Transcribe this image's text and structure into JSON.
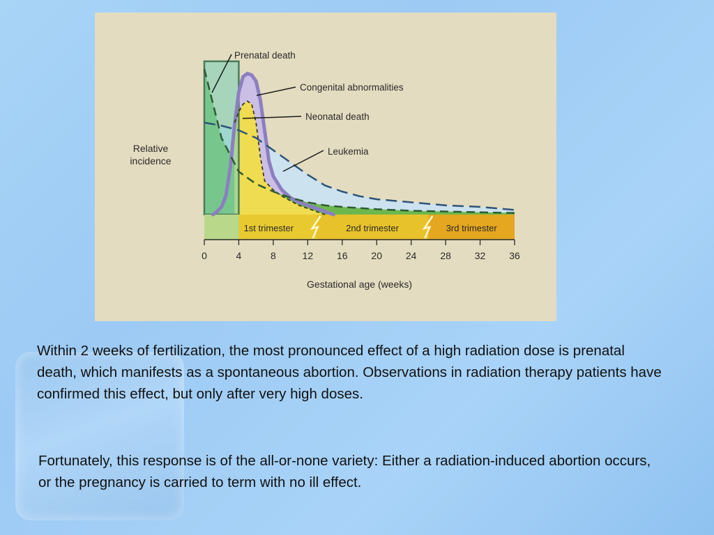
{
  "chart_data": {
    "type": "area",
    "xlabel": "Gestational age (weeks)",
    "ylabel_lines": [
      "Relative",
      "incidence"
    ],
    "x_ticks": [
      0,
      4,
      8,
      12,
      16,
      20,
      24,
      28,
      32,
      36
    ],
    "xlim": [
      0,
      36
    ],
    "ylim": [
      0,
      1
    ],
    "grid": false,
    "periods": [
      {
        "label": "1st trimester",
        "start": 0,
        "end": 13
      },
      {
        "label": "2nd trimester",
        "start": 13,
        "end": 26
      },
      {
        "label": "3rd trimester",
        "start": 26,
        "end": 36
      }
    ],
    "series": [
      {
        "name": "Prenatal death",
        "style": "box",
        "color": "#7fd0b8",
        "x": [
          0,
          0,
          4,
          4
        ],
        "y": [
          0,
          1,
          1,
          0
        ]
      },
      {
        "name": "Congenital abnormalities",
        "style": "solid",
        "color": "#8c7fc0",
        "x": [
          1,
          1.5,
          2,
          2.5,
          3,
          3.5,
          4,
          4.5,
          5,
          5.5,
          6,
          6.5,
          7,
          7.5,
          8,
          9,
          10,
          11,
          12,
          13,
          14,
          15
        ],
        "y": [
          0,
          0.02,
          0.05,
          0.12,
          0.3,
          0.58,
          0.8,
          0.9,
          0.92,
          0.91,
          0.87,
          0.75,
          0.55,
          0.35,
          0.25,
          0.16,
          0.11,
          0.08,
          0.06,
          0.04,
          0.02,
          0
        ]
      },
      {
        "name": "Neonatal death",
        "style": "dashed",
        "color": "#f0dc50",
        "x": [
          3.5,
          4,
          4.5,
          5,
          5.5,
          6,
          6.5,
          7,
          8,
          9,
          10,
          11,
          12,
          13,
          14
        ],
        "y": [
          0.6,
          0.67,
          0.72,
          0.74,
          0.72,
          0.6,
          0.38,
          0.22,
          0.16,
          0.12,
          0.09,
          0.06,
          0.04,
          0.02,
          0
        ]
      },
      {
        "name": "Leukemia",
        "style": "dashed",
        "color": "#cde2ef",
        "x": [
          0,
          2,
          4,
          6,
          8,
          10,
          12,
          14,
          16,
          18,
          20,
          24,
          28,
          32,
          36
        ],
        "y": [
          0.6,
          0.58,
          0.55,
          0.5,
          0.42,
          0.34,
          0.26,
          0.19,
          0.15,
          0.12,
          0.1,
          0.08,
          0.06,
          0.05,
          0.03
        ]
      },
      {
        "name": "",
        "style": "dashed-fill",
        "color": "#6cb84e",
        "x": [
          0,
          2,
          4,
          6,
          8,
          10,
          12,
          14,
          16,
          20,
          24,
          28,
          32,
          36
        ],
        "y": [
          0.95,
          0.5,
          0.28,
          0.2,
          0.15,
          0.11,
          0.08,
          0.06,
          0.05,
          0.035,
          0.025,
          0.02,
          0.015,
          0.01
        ]
      }
    ]
  },
  "body": {
    "p1": "Within 2 weeks of fertilization, the most pronounced effect of a high radiation dose is prenatal death, which manifests as a spontaneous abortion. Observations in radiation therapy patients have confirmed this effect, but only after very high doses.",
    "p2": "Fortunately, this response is of the all-or-none variety: Either a radiation-induced abortion occurs, or the pregnancy is carried to term with no ill effect."
  }
}
